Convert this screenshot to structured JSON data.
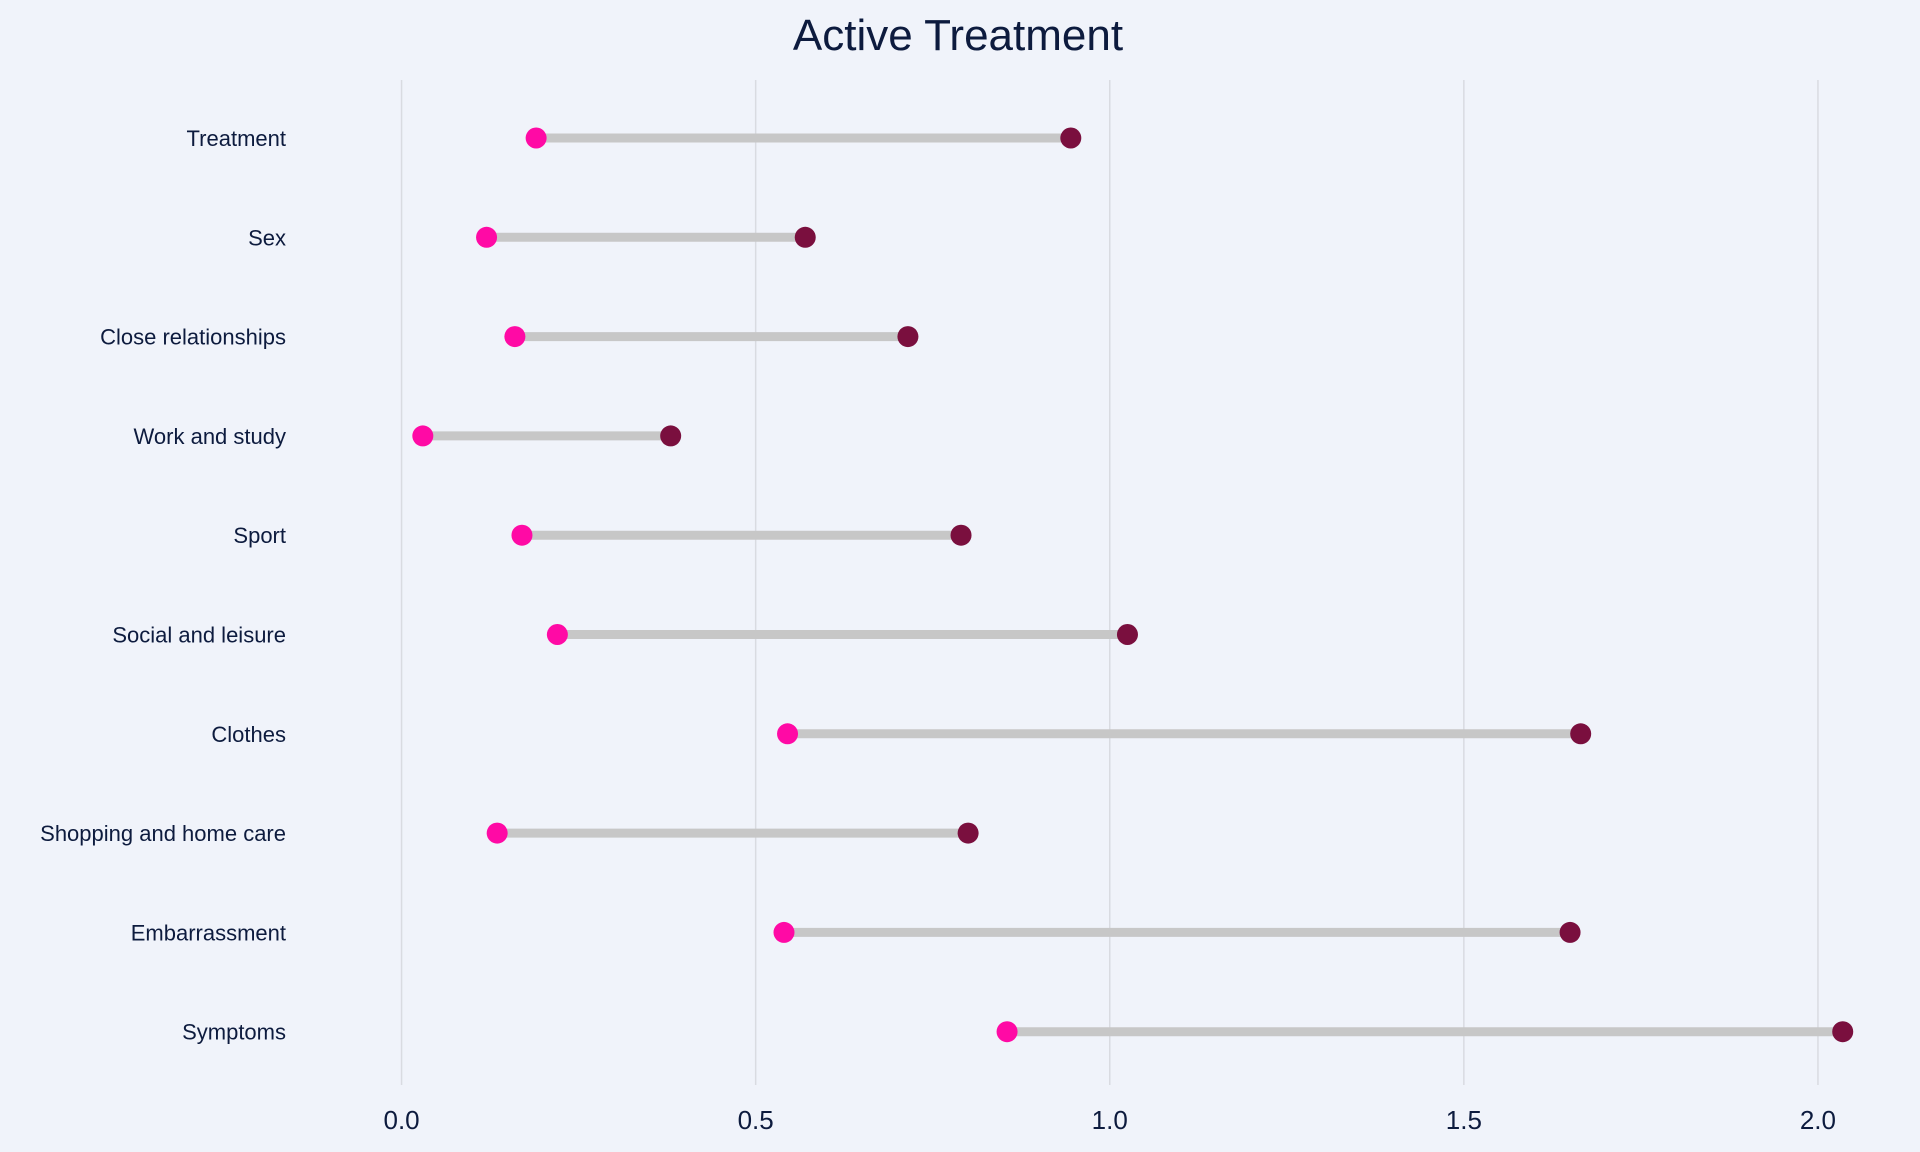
{
  "chart_data": {
    "type": "dumbbell",
    "title": "Active Treatment",
    "xlabel": "",
    "ylabel": "",
    "xlim": [
      -0.07,
      2.13
    ],
    "xticks": [
      0.0,
      0.5,
      1.0,
      1.5,
      2.0
    ],
    "xtick_labels": [
      "0.0",
      "0.5",
      "1.0",
      "1.5",
      "2.0"
    ],
    "grid": "vertical",
    "categories": [
      "Treatment",
      "Sex",
      "Close relationships",
      "Work and study",
      "Sport",
      "Social and leisure",
      "Clothes",
      "Shopping and home care",
      "Embarrassment",
      "Symptoms"
    ],
    "series": [
      {
        "color": "#ff0aa5",
        "values": [
          0.19,
          0.12,
          0.16,
          0.03,
          0.17,
          0.22,
          0.545,
          0.135,
          0.54,
          0.855
        ]
      },
      {
        "color": "#7a0f3e",
        "values": [
          0.945,
          0.57,
          0.715,
          0.38,
          0.79,
          1.025,
          1.665,
          0.8,
          1.65,
          2.035
        ]
      }
    ],
    "connector_color": "#c7c7c7"
  }
}
